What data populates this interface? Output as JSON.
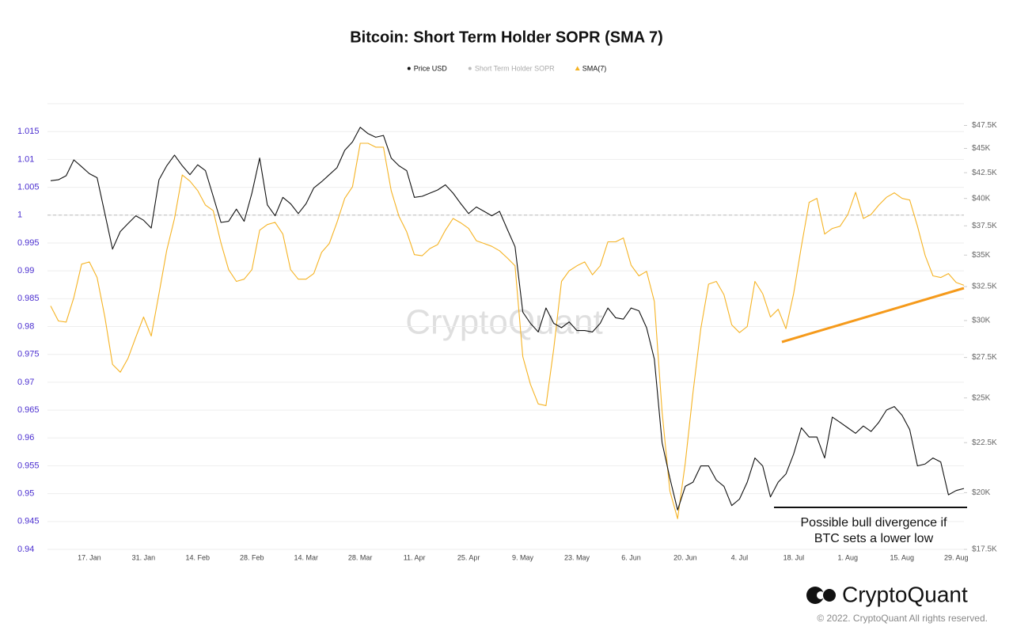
{
  "chart_data": {
    "type": "line",
    "title": "Bitcoin: Short Term Holder SOPR (SMA 7)",
    "categories": [
      null,
      null,
      null,
      null,
      null,
      "17. Jan",
      null,
      null,
      null,
      null,
      null,
      null,
      "31. Jan",
      null,
      null,
      null,
      null,
      null,
      null,
      "14. Feb",
      null,
      null,
      null,
      null,
      null,
      null,
      "28. Feb",
      null,
      null,
      null,
      null,
      null,
      null,
      "14. Mar",
      null,
      null,
      null,
      null,
      null,
      null,
      "28. Mar",
      null,
      null,
      null,
      null,
      null,
      null,
      "11. Apr",
      null,
      null,
      null,
      null,
      null,
      null,
      "25. Apr",
      null,
      null,
      null,
      null,
      null,
      null,
      "9. May",
      null,
      null,
      null,
      null,
      null,
      null,
      "23. May",
      null,
      null,
      null,
      null,
      null,
      null,
      "6. Jun",
      null,
      null,
      null,
      null,
      null,
      null,
      "20. Jun",
      null,
      null,
      null,
      null,
      null,
      null,
      "4. Jul",
      null,
      null,
      null,
      null,
      null,
      null,
      "18. Jul",
      null,
      null,
      null,
      null,
      null,
      null,
      "1. Aug",
      null,
      null,
      null,
      null,
      null,
      null,
      "15. Aug",
      null,
      null,
      null,
      null,
      null,
      null,
      "29. Aug",
      null
    ],
    "series": [
      {
        "name": "Price USD",
        "color": "#111111",
        "marker": "circle",
        "axis": "y2",
        "values": [
          41700,
          41800,
          42200,
          43800,
          43100,
          42400,
          42000,
          38600,
          35500,
          37000,
          37700,
          38400,
          38000,
          37300,
          41800,
          43200,
          44300,
          43200,
          42300,
          43300,
          42700,
          40200,
          37800,
          37900,
          39000,
          37900,
          40500,
          44000,
          39400,
          38400,
          40100,
          39500,
          38600,
          39500,
          41000,
          41600,
          42300,
          43000,
          44800,
          45700,
          47300,
          46600,
          46200,
          46400,
          44000,
          43200,
          42700,
          40100,
          40200,
          40500,
          40800,
          41300,
          40500,
          39500,
          38600,
          39200,
          38800,
          38400,
          38800,
          37200,
          35700,
          30600,
          29800,
          29200,
          30900,
          29800,
          29500,
          29900,
          29300,
          29300,
          29200,
          29800,
          30900,
          30200,
          30100,
          30900,
          30700,
          29500,
          27400,
          22500,
          20700,
          19200,
          20300,
          20500,
          21300,
          21300,
          20600,
          20300,
          19400,
          19700,
          20500,
          21700,
          21300,
          19800,
          20500,
          20900,
          21900,
          23300,
          22800,
          22800,
          21700,
          23900,
          23600,
          23300,
          23000,
          23400,
          23100,
          23600,
          24300,
          24500,
          24000,
          23200,
          21300,
          21400,
          21700,
          21500,
          19900,
          20100,
          20200
        ]
      },
      {
        "name": "Short Term Holder SOPR",
        "color": "#bbbbbb",
        "marker": "circle",
        "visible": false
      },
      {
        "name": "SMA(7)",
        "color": "#f5b324",
        "marker": "triangle",
        "values": [
          0.9837,
          0.981,
          0.9808,
          0.9852,
          0.9912,
          0.9916,
          0.9888,
          0.9817,
          0.9732,
          0.9718,
          0.9743,
          0.9781,
          0.9817,
          0.9783,
          0.9859,
          0.9937,
          0.9994,
          1.0072,
          1.0061,
          1.0044,
          1.0018,
          1.0008,
          0.995,
          0.9902,
          0.9881,
          0.9885,
          0.9902,
          0.9973,
          0.9983,
          0.9987,
          0.9966,
          0.9902,
          0.9885,
          0.9885,
          0.9895,
          0.9933,
          0.9949,
          0.9987,
          1.003,
          1.0051,
          1.0129,
          1.0129,
          1.0122,
          1.0122,
          1.0044,
          0.9998,
          0.997,
          0.9929,
          0.9927,
          0.994,
          0.9947,
          0.9973,
          0.9994,
          0.9986,
          0.9976,
          0.9954,
          0.9949,
          0.9944,
          0.9936,
          0.9923,
          0.9909,
          0.9746,
          0.9696,
          0.9661,
          0.9658,
          0.976,
          0.9881,
          0.99,
          0.9909,
          0.9916,
          0.9893,
          0.9909,
          0.9952,
          0.9952,
          0.9959,
          0.991,
          0.9891,
          0.9899,
          0.9845,
          0.9647,
          0.9505,
          0.9455,
          0.9555,
          0.9682,
          0.9796,
          0.9876,
          0.9881,
          0.9857,
          0.9803,
          0.9789,
          0.98,
          0.9881,
          0.9859,
          0.9817,
          0.9831,
          0.9796,
          0.9859,
          0.9944,
          1.0023,
          1.003,
          0.9966,
          0.9976,
          0.998,
          1.0001,
          1.0041,
          0.9994,
          1.0001,
          1.0018,
          1.0032,
          1.004,
          1.003,
          1.0027,
          0.998,
          0.9927,
          0.9891,
          0.9888,
          0.9895,
          0.9879,
          0.9874
        ]
      }
    ],
    "ylim": [
      0.94,
      1.02
    ],
    "yticks": [
      0.94,
      0.945,
      0.95,
      0.955,
      0.96,
      0.965,
      0.97,
      0.975,
      0.98,
      0.985,
      0.99,
      0.995,
      1,
      1.005,
      1.01,
      1.015
    ],
    "y2lim": [
      17500,
      50000
    ],
    "y2log": true,
    "y2ticks": [
      {
        "value": 17500,
        "label": "$17.5K"
      },
      {
        "value": 20000,
        "label": "$20K"
      },
      {
        "value": 22500,
        "label": "$22.5K"
      },
      {
        "value": 25000,
        "label": "$25K"
      },
      {
        "value": 27500,
        "label": "$27.5K"
      },
      {
        "value": 30000,
        "label": "$30K"
      },
      {
        "value": 32500,
        "label": "$32.5K"
      },
      {
        "value": 35000,
        "label": "$35K"
      },
      {
        "value": 37500,
        "label": "$37.5K"
      },
      {
        "value": 40000,
        "label": "$40K"
      },
      {
        "value": 42500,
        "label": "$42.5K"
      },
      {
        "value": 45000,
        "label": "$45K"
      },
      {
        "value": 47500,
        "label": "$47.5K"
      }
    ],
    "reference_line": 1,
    "grid": true,
    "legend": "top",
    "annotation": [
      "Possible bull divergence if",
      "BTC sets a lower low"
    ],
    "watermark": "CryptoQuant",
    "brand": "CryptoQuant",
    "copyright": "© 2022. CryptoQuant All rights reserved."
  }
}
